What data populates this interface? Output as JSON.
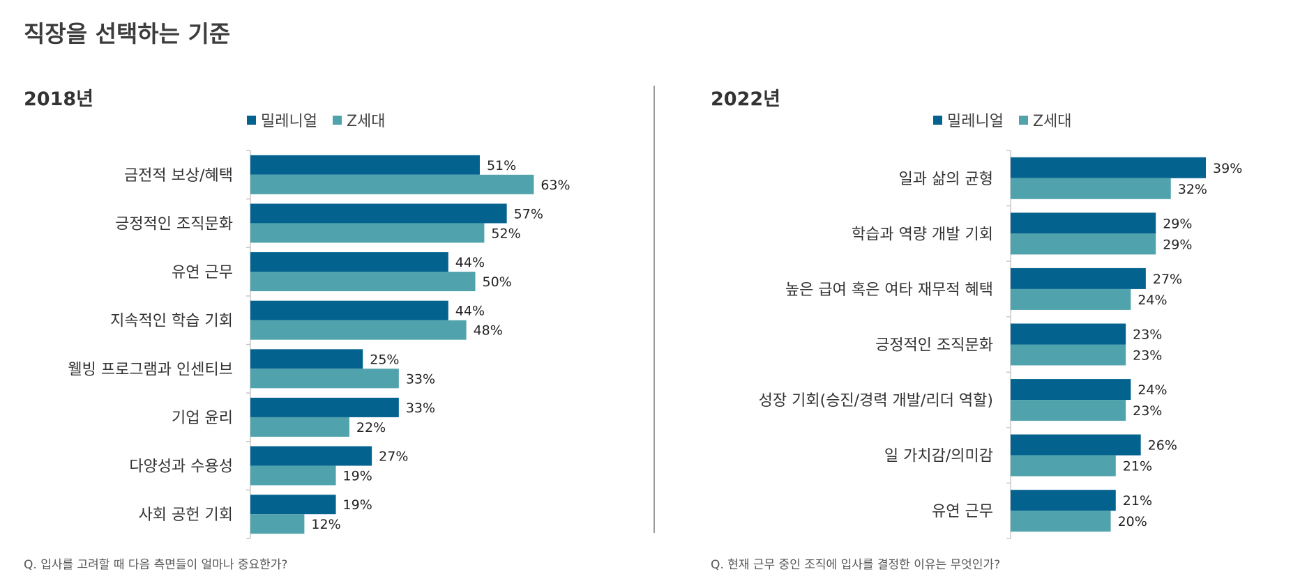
{
  "page": {
    "title": "직장을 선택하는 기준"
  },
  "colors": {
    "millennial": "#04628f",
    "genz": "#50a3ac",
    "axis": "#c8c8c8",
    "text": "#333333"
  },
  "chart_data": [
    {
      "type": "bar",
      "orientation": "horizontal",
      "title": "2018년",
      "question": "Q. 입사를 고려할 때 다음 측면들이 얼마나 중요한가?",
      "legend_placement": "top",
      "categories": [
        "금전적 보상/혜택",
        "긍정적인 조직문화",
        "유연 근무",
        "지속적인 학습 기회",
        "웰빙 프로그램과 인센티브",
        "기업 윤리",
        "다양성과 수용성",
        "사회 공헌 기회"
      ],
      "series": [
        {
          "name": "밀레니얼",
          "values": [
            51,
            57,
            44,
            44,
            25,
            33,
            27,
            19
          ],
          "labels": [
            "51%",
            "57%",
            "44%",
            "44%",
            "25%",
            "33%",
            "27%",
            "19%"
          ]
        },
        {
          "name": "Z세대",
          "values": [
            63,
            52,
            50,
            48,
            33,
            22,
            19,
            12
          ],
          "labels": [
            "63%",
            "52%",
            "50%",
            "48%",
            "33%",
            "22%",
            "19%",
            "12%"
          ]
        }
      ],
      "xlim": [
        0,
        100
      ],
      "grid": false
    },
    {
      "type": "bar",
      "orientation": "horizontal",
      "title": "2022년",
      "question": "Q. 현재 근무 중인 조직에 입사를 결정한 이유는 무엇인가?",
      "legend_placement": "top",
      "categories": [
        "일과 삶의 균형",
        "학습과 역량 개발 기회",
        "높은 급여 혹은 여타 재무적 혜택",
        "긍정적인 조직문화",
        "성장 기회(승진/경력 개발/리더 역할)",
        "일 가치감/의미감",
        "유연 근무"
      ],
      "series": [
        {
          "name": "밀레니얼",
          "values": [
            39,
            29,
            27,
            23,
            24,
            26,
            21
          ],
          "labels": [
            "39%",
            "29%",
            "27%",
            "23%",
            "24%",
            "26%",
            "21%"
          ]
        },
        {
          "name": "Z세대",
          "values": [
            32,
            29,
            24,
            23,
            23,
            21,
            20
          ],
          "labels": [
            "32%",
            "29%",
            "24%",
            "23%",
            "23%",
            "21%",
            "20%"
          ]
        }
      ],
      "xlim": [
        0,
        100
      ],
      "grid": false
    }
  ]
}
